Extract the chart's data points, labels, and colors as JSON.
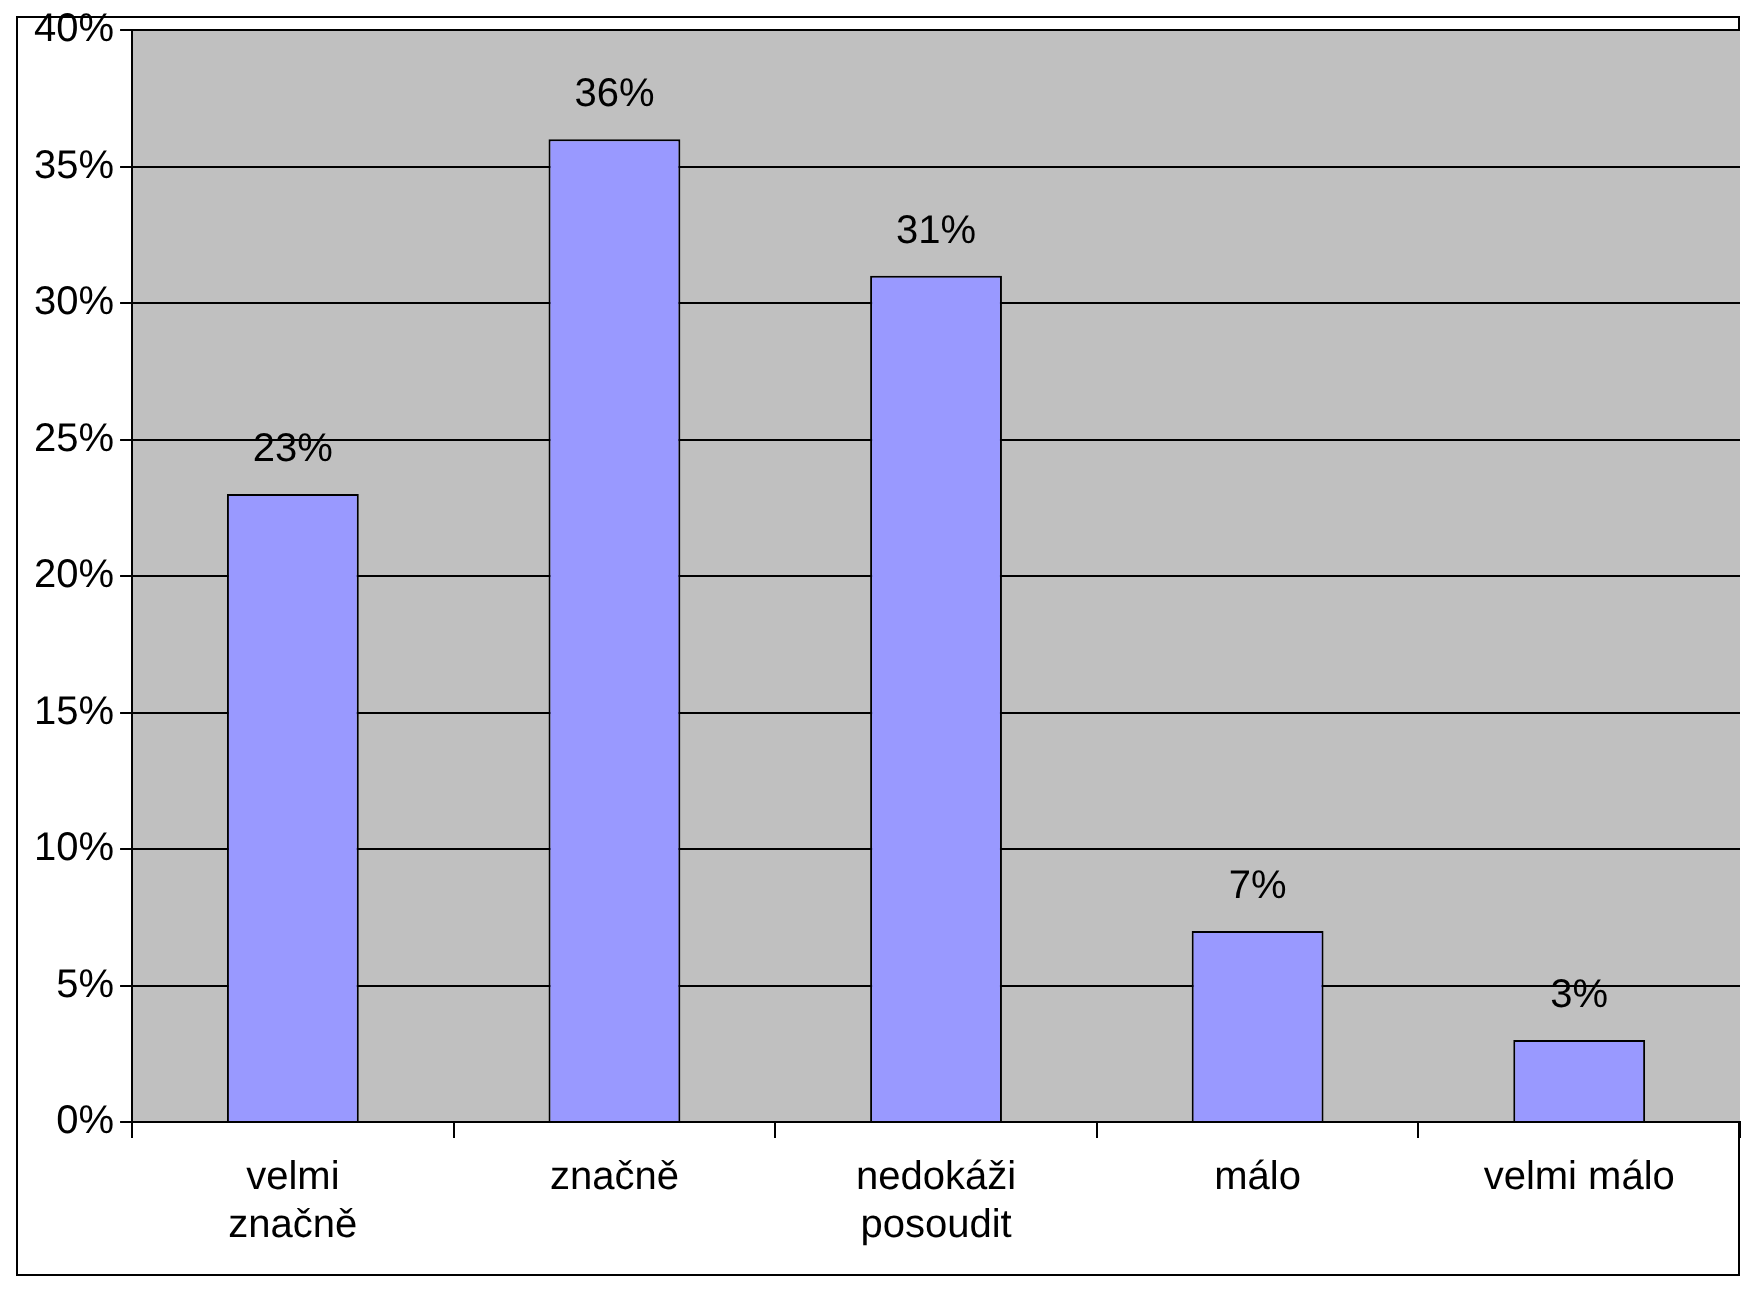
{
  "chart_data": {
    "type": "bar",
    "categories": [
      "velmi značně",
      "značně",
      "nedokáži posoudit",
      "málo",
      "velmi málo"
    ],
    "values": [
      23,
      36,
      31,
      7,
      3
    ],
    "color": "#9999ff",
    "value_labels": [
      "23%",
      "36%",
      "31%",
      "7%",
      "3%"
    ],
    "ylim": [
      0,
      40
    ],
    "yticks": [
      {
        "value": 0,
        "label": "0%"
      },
      {
        "value": 5,
        "label": "5%"
      },
      {
        "value": 10,
        "label": "10%"
      },
      {
        "value": 15,
        "label": "15%"
      },
      {
        "value": 20,
        "label": "20%"
      },
      {
        "value": 25,
        "label": "25%"
      },
      {
        "value": 30,
        "label": "30%"
      },
      {
        "value": 35,
        "label": "35%"
      },
      {
        "value": 40,
        "label": "40%"
      }
    ],
    "grid": "y",
    "legend": false
  }
}
